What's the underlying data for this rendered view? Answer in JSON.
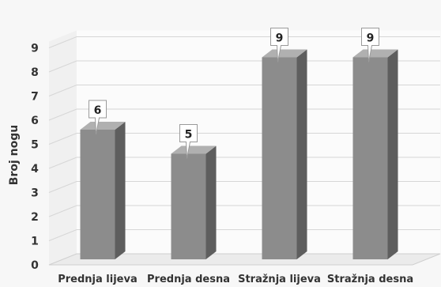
{
  "chart_data": {
    "type": "bar",
    "title": "",
    "xlabel": "",
    "ylabel": "Broj nogu",
    "categories": [
      "Prednja lijeva",
      "Prednja desna",
      "Stražnja lijeva",
      "Stražnja desna"
    ],
    "values": [
      6,
      5,
      9,
      9
    ],
    "ylim": [
      0,
      9
    ],
    "yticks": [
      "0",
      "1",
      "2",
      "3",
      "4",
      "5",
      "6",
      "7",
      "8",
      "9"
    ],
    "data_labels": [
      "6",
      "5",
      "9",
      "9"
    ],
    "grid": true,
    "legend": "none",
    "style": "3d-column",
    "colors": {
      "bar_front": "#8c8c8c",
      "bar_side": "#5e5e5e",
      "bar_top": "#b0b0b0",
      "grid": "#d6d6d6",
      "floor": "#ebebeb"
    }
  }
}
